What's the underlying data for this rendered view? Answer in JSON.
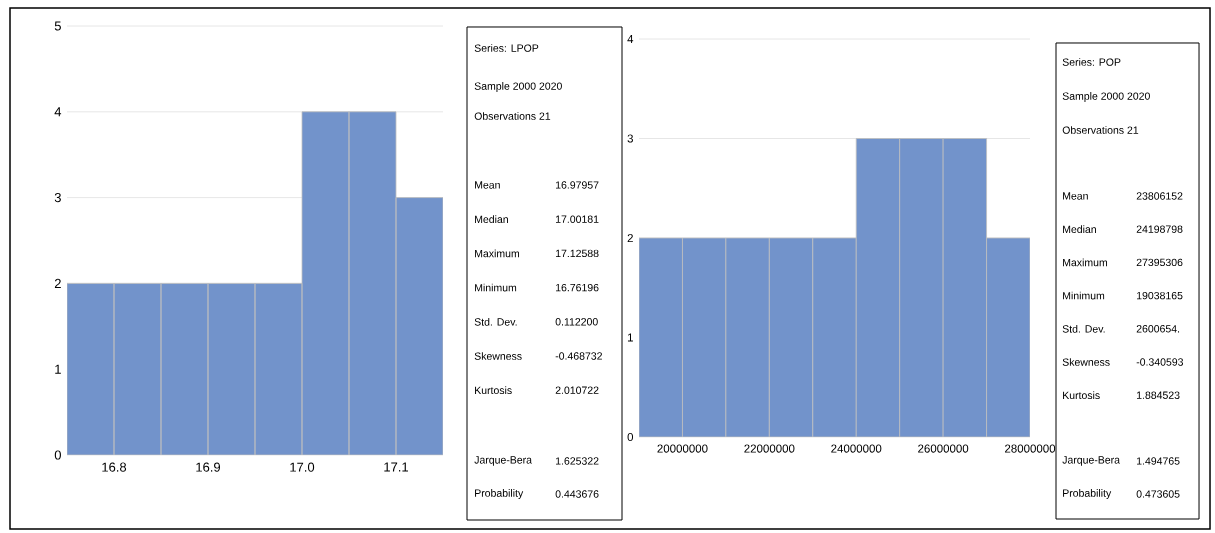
{
  "chart_data": [
    {
      "type": "histogram",
      "bins": [
        16.75,
        16.8,
        16.85,
        16.9,
        16.95,
        17.0,
        17.05,
        17.1,
        17.15
      ],
      "values": [
        2,
        2,
        2,
        2,
        2,
        4,
        4,
        3
      ],
      "color": "#7293cb",
      "xlim": [
        16.75,
        17.15
      ],
      "ylim": [
        0,
        5
      ],
      "xticks": [
        16.8,
        16.9,
        {
          "value": 17.0,
          "label": "17.0"
        },
        17.1
      ],
      "yticks": [
        0,
        1,
        2,
        3,
        4,
        5
      ],
      "grid": "y"
    },
    {
      "type": "other",
      "annotations": [
        "Series: LPOP",
        "Sample 2000 2020",
        "Observations 21",
        "Mean",
        "16.97957",
        "Median",
        "17.00181",
        "Maximum",
        "17.12588",
        "Minimum",
        "16.76196",
        "Std. Dev.",
        "0.112200",
        "Skewness",
        "-0.468732",
        "Kurtosis",
        "2.010722",
        "Jarque-Bera",
        "1.625322",
        "Probability",
        "0.443676"
      ]
    },
    {
      "type": "histogram",
      "bins": [
        19000000,
        20000000,
        21000000,
        22000000,
        23000000,
        24000000,
        25000000,
        26000000,
        27000000,
        28000000
      ],
      "values": [
        2,
        2,
        2,
        2,
        2,
        3,
        3,
        3,
        2
      ],
      "color": "#7293cb",
      "xlim": [
        19000000,
        28000000
      ],
      "ylim": [
        0,
        4
      ],
      "xticks": [
        20000000,
        22000000,
        24000000,
        26000000,
        28000000
      ],
      "yticks": [
        0,
        1,
        2,
        3,
        4
      ],
      "grid": "y"
    },
    {
      "type": "other",
      "annotations": [
        "Series: POP",
        "Sample 2000 2020",
        "Observations 21",
        "Mean",
        "23806152",
        "Median",
        "24198798",
        "Maximum",
        "27395306",
        "Minimum",
        "19038165",
        "Std. Dev.",
        "2600654.",
        "Skewness",
        "-0.340593",
        "Kurtosis",
        "1.884523",
        "Jarque-Bera",
        "1.494765",
        "Probability",
        "0.473605"
      ]
    }
  ]
}
